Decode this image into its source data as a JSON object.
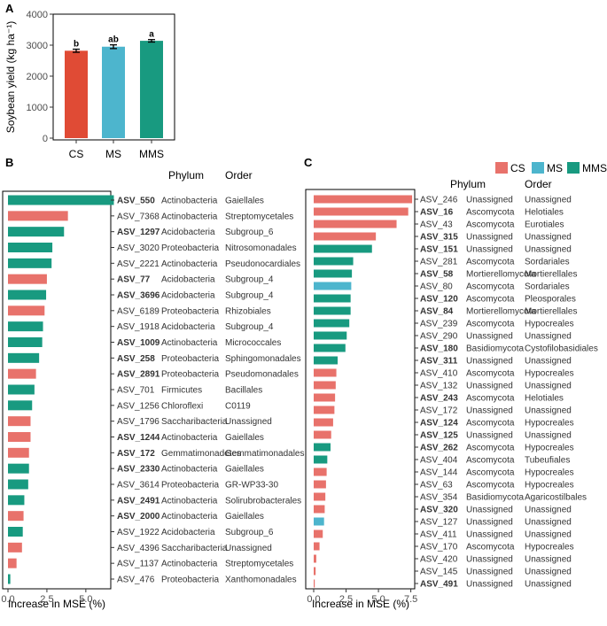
{
  "panels": {
    "A": "A",
    "B": "B",
    "C": "C"
  },
  "colors": {
    "CS": "#e8726b",
    "MS": "#4db5cd",
    "MMS": "#189a80",
    "A_CS": "#e04b35",
    "A_MS": "#4db5cd",
    "A_MMS": "#189a80"
  },
  "table_headers": {
    "phylum": "Phylum",
    "order": "Order"
  },
  "legend": [
    "CS",
    "MS",
    "MMS"
  ],
  "chart_data": [
    {
      "type": "bar",
      "categories": [
        "CS",
        "MS",
        "MMS"
      ],
      "values": [
        2820,
        2950,
        3140
      ],
      "errors": [
        50,
        60,
        40
      ],
      "letters": [
        "b",
        "ab",
        "a"
      ],
      "ylabel": "Soybean yield (kg ha⁻¹)",
      "ylim": [
        0,
        4000
      ],
      "yticks": [
        0,
        1000,
        2000,
        3000,
        4000
      ],
      "grid": false
    },
    {
      "type": "bar",
      "orientation": "horizontal",
      "xlabel": "Increase in MSE (%)",
      "xlim": [
        0,
        7
      ],
      "xticks": [
        0.0,
        2.5,
        5.0
      ],
      "rows": [
        {
          "asv": "ASV_550",
          "bold": true,
          "phylum": "Actinobacteria",
          "order": "Gaiellales",
          "group": "MMS",
          "value": 6.8
        },
        {
          "asv": "ASV_7368",
          "bold": false,
          "phylum": "Actinobacteria",
          "order": "Streptomycetales",
          "group": "CS",
          "value": 3.85
        },
        {
          "asv": "ASV_1297",
          "bold": true,
          "phylum": "Acidobacteria",
          "order": "Subgroup_6",
          "group": "MMS",
          "value": 3.6
        },
        {
          "asv": "ASV_3020",
          "bold": false,
          "phylum": "Proteobacteria",
          "order": "Nitrosomonadales",
          "group": "MMS",
          "value": 2.85
        },
        {
          "asv": "ASV_2221",
          "bold": false,
          "phylum": "Actinobacteria",
          "order": "Pseudonocardiales",
          "group": "MMS",
          "value": 2.8
        },
        {
          "asv": "ASV_77",
          "bold": true,
          "phylum": "Acidobacteria",
          "order": "Subgroup_4",
          "group": "CS",
          "value": 2.5
        },
        {
          "asv": "ASV_3696",
          "bold": true,
          "phylum": "Acidobacteria",
          "order": "Subgroup_4",
          "group": "MMS",
          "value": 2.45
        },
        {
          "asv": "ASV_6189",
          "bold": false,
          "phylum": "Proteobacteria",
          "order": "Rhizobiales",
          "group": "CS",
          "value": 2.35
        },
        {
          "asv": "ASV_1918",
          "bold": false,
          "phylum": "Acidobacteria",
          "order": "Subgroup_4",
          "group": "MMS",
          "value": 2.25
        },
        {
          "asv": "ASV_1009",
          "bold": true,
          "phylum": "Actinobacteria",
          "order": "Micrococcales",
          "group": "MMS",
          "value": 2.2
        },
        {
          "asv": "ASV_258",
          "bold": true,
          "phylum": "Proteobacteria",
          "order": "Sphingomonadales",
          "group": "MMS",
          "value": 2.0
        },
        {
          "asv": "ASV_2891",
          "bold": true,
          "phylum": "Proteobacteria",
          "order": "Pseudomonadales",
          "group": "CS",
          "value": 1.8
        },
        {
          "asv": "ASV_701",
          "bold": false,
          "phylum": "Firmicutes",
          "order": "Bacillales",
          "group": "MMS",
          "value": 1.7
        },
        {
          "asv": "ASV_1256",
          "bold": false,
          "phylum": "Chloroflexi",
          "order": "C0119",
          "group": "MMS",
          "value": 1.55
        },
        {
          "asv": "ASV_1796",
          "bold": false,
          "phylum": "Saccharibacteria",
          "order": "Unassigned",
          "group": "CS",
          "value": 1.45
        },
        {
          "asv": "ASV_1244",
          "bold": true,
          "phylum": "Actinobacteria",
          "order": "Gaiellales",
          "group": "CS",
          "value": 1.45
        },
        {
          "asv": "ASV_172",
          "bold": true,
          "phylum": "Gemmatimonadetes",
          "order": "Gemmatimonadales",
          "group": "CS",
          "value": 1.35
        },
        {
          "asv": "ASV_2330",
          "bold": true,
          "phylum": "Actinobacteria",
          "order": "Gaiellales",
          "group": "MMS",
          "value": 1.35
        },
        {
          "asv": "ASV_3614",
          "bold": false,
          "phylum": "Proteobacteria",
          "order": "GR-WP33-30",
          "group": "MMS",
          "value": 1.3
        },
        {
          "asv": "ASV_2491",
          "bold": true,
          "phylum": "Actinobacteria",
          "order": "Solirubrobacterales",
          "group": "MMS",
          "value": 1.05
        },
        {
          "asv": "ASV_2000",
          "bold": true,
          "phylum": "Actinobacteria",
          "order": "Gaiellales",
          "group": "CS",
          "value": 1.0
        },
        {
          "asv": "ASV_1922",
          "bold": false,
          "phylum": "Acidobacteria",
          "order": "Subgroup_6",
          "group": "MMS",
          "value": 0.95
        },
        {
          "asv": "ASV_4396",
          "bold": false,
          "phylum": "Saccharibacteria",
          "order": "Unassigned",
          "group": "CS",
          "value": 0.9
        },
        {
          "asv": "ASV_1137",
          "bold": false,
          "phylum": "Actinobacteria",
          "order": "Streptomycetales",
          "group": "CS",
          "value": 0.55
        },
        {
          "asv": "ASV_476",
          "bold": false,
          "phylum": "Proteobacteria",
          "order": "Xanthomonadales",
          "group": "MMS",
          "value": 0.15
        }
      ]
    },
    {
      "type": "bar",
      "orientation": "horizontal",
      "xlabel": "Increase in MSE (%)",
      "xlim": [
        0,
        7.8
      ],
      "xticks": [
        0.0,
        2.5,
        5.0,
        7.5
      ],
      "rows": [
        {
          "asv": "ASV_246",
          "bold": false,
          "phylum": "Unassigned",
          "order": "Unassigned",
          "group": "CS",
          "value": 7.6
        },
        {
          "asv": "ASV_16",
          "bold": true,
          "phylum": "Ascomycota",
          "order": "Helotiales",
          "group": "CS",
          "value": 7.3
        },
        {
          "asv": "ASV_43",
          "bold": false,
          "phylum": "Ascomycota",
          "order": "Eurotiales",
          "group": "CS",
          "value": 6.4
        },
        {
          "asv": "ASV_315",
          "bold": true,
          "phylum": "Unassigned",
          "order": "Unassigned",
          "group": "CS",
          "value": 4.8
        },
        {
          "asv": "ASV_151",
          "bold": true,
          "phylum": "Unassigned",
          "order": "Unassigned",
          "group": "MMS",
          "value": 4.5
        },
        {
          "asv": "ASV_281",
          "bold": false,
          "phylum": "Ascomycota",
          "order": "Sordariales",
          "group": "MMS",
          "value": 3.05
        },
        {
          "asv": "ASV_58",
          "bold": true,
          "phylum": "Mortierellomycota",
          "order": "Mortierellales",
          "group": "MMS",
          "value": 2.95
        },
        {
          "asv": "ASV_80",
          "bold": false,
          "phylum": "Ascomycota",
          "order": "Sordariales",
          "group": "MS",
          "value": 2.9
        },
        {
          "asv": "ASV_120",
          "bold": true,
          "phylum": "Ascomycota",
          "order": "Pleosporales",
          "group": "MMS",
          "value": 2.85
        },
        {
          "asv": "ASV_84",
          "bold": true,
          "phylum": "Mortierellomycota",
          "order": "Mortierellales",
          "group": "MMS",
          "value": 2.85
        },
        {
          "asv": "ASV_239",
          "bold": false,
          "phylum": "Ascomycota",
          "order": "Hypocreales",
          "group": "MMS",
          "value": 2.75
        },
        {
          "asv": "ASV_290",
          "bold": false,
          "phylum": "Unassigned",
          "order": "Unassigned",
          "group": "MMS",
          "value": 2.55
        },
        {
          "asv": "ASV_180",
          "bold": true,
          "phylum": "Basidiomycota",
          "order": "Cystofilobasidiales",
          "group": "MMS",
          "value": 2.45
        },
        {
          "asv": "ASV_311",
          "bold": true,
          "phylum": "Unassigned",
          "order": "Unassigned",
          "group": "MMS",
          "value": 1.85
        },
        {
          "asv": "ASV_410",
          "bold": false,
          "phylum": "Ascomycota",
          "order": "Hypocreales",
          "group": "CS",
          "value": 1.75
        },
        {
          "asv": "ASV_132",
          "bold": false,
          "phylum": "Unassigned",
          "order": "Unassigned",
          "group": "CS",
          "value": 1.7
        },
        {
          "asv": "ASV_243",
          "bold": true,
          "phylum": "Ascomycota",
          "order": "Helotiales",
          "group": "CS",
          "value": 1.65
        },
        {
          "asv": "ASV_172",
          "bold": false,
          "phylum": "Unassigned",
          "order": "Unassigned",
          "group": "CS",
          "value": 1.6
        },
        {
          "asv": "ASV_124",
          "bold": true,
          "phylum": "Ascomycota",
          "order": "Hypocreales",
          "group": "CS",
          "value": 1.5
        },
        {
          "asv": "ASV_125",
          "bold": true,
          "phylum": "Unassigned",
          "order": "Unassigned",
          "group": "CS",
          "value": 1.35
        },
        {
          "asv": "ASV_262",
          "bold": true,
          "phylum": "Ascomycota",
          "order": "Hypocreales",
          "group": "MMS",
          "value": 1.3
        },
        {
          "asv": "ASV_404",
          "bold": false,
          "phylum": "Ascomycota",
          "order": "Tubeufiales",
          "group": "MMS",
          "value": 1.05
        },
        {
          "asv": "ASV_144",
          "bold": false,
          "phylum": "Ascomycota",
          "order": "Hypocreales",
          "group": "CS",
          "value": 1.0
        },
        {
          "asv": "ASV_63",
          "bold": false,
          "phylum": "Ascomycota",
          "order": "Hypocreales",
          "group": "CS",
          "value": 0.95
        },
        {
          "asv": "ASV_354",
          "bold": false,
          "phylum": "Basidiomycota",
          "order": "Agaricostilbales",
          "group": "CS",
          "value": 0.9
        },
        {
          "asv": "ASV_320",
          "bold": true,
          "phylum": "Unassigned",
          "order": "Unassigned",
          "group": "CS",
          "value": 0.85
        },
        {
          "asv": "ASV_127",
          "bold": false,
          "phylum": "Unassigned",
          "order": "Unassigned",
          "group": "MS",
          "value": 0.8
        },
        {
          "asv": "ASV_411",
          "bold": false,
          "phylum": "Unassigned",
          "order": "Unassigned",
          "group": "CS",
          "value": 0.7
        },
        {
          "asv": "ASV_170",
          "bold": false,
          "phylum": "Ascomycota",
          "order": "Hypocreales",
          "group": "CS",
          "value": 0.45
        },
        {
          "asv": "ASV_420",
          "bold": false,
          "phylum": "Unassigned",
          "order": "Unassigned",
          "group": "CS",
          "value": 0.2
        },
        {
          "asv": "ASV_145",
          "bold": false,
          "phylum": "Unassigned",
          "order": "Unassigned",
          "group": "CS",
          "value": 0.15
        },
        {
          "asv": "ASV_491",
          "bold": true,
          "phylum": "Unassigned",
          "order": "Unassigned",
          "group": "CS",
          "value": 0.05
        }
      ]
    }
  ]
}
